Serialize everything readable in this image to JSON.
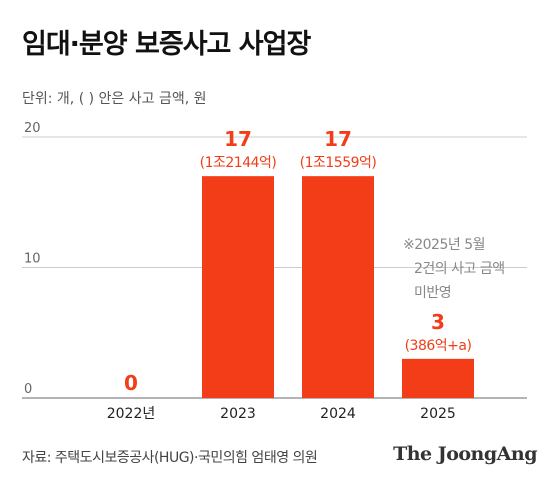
{
  "title": "임대·분양 보증사고 사업장",
  "unit_note": "단위: 개, ( ) 안은 사고 금액, 원",
  "source": "자료: 주택도시보증공사(HUG)·국민의힘 엄태영 의원",
  "brand": "The JoongAng",
  "colors": {
    "bar": "#f23d18",
    "grid": "#cccccc",
    "text": "#222222",
    "note": "#888888"
  },
  "chart_data": {
    "type": "bar",
    "categories": [
      "2022년",
      "2023",
      "2024",
      "2025"
    ],
    "values": [
      0,
      17,
      17,
      3
    ],
    "value_labels": [
      "0",
      "17",
      "17",
      "3"
    ],
    "amount_labels": [
      "",
      "(1조2144억)",
      "(1조1559억)",
      "(386억+a)"
    ],
    "ylim": [
      0,
      20
    ],
    "yticks": [
      0,
      10,
      20
    ],
    "grid": true,
    "note": [
      "※2025년 5월",
      "2건의 사고 금액",
      "미반영"
    ]
  }
}
